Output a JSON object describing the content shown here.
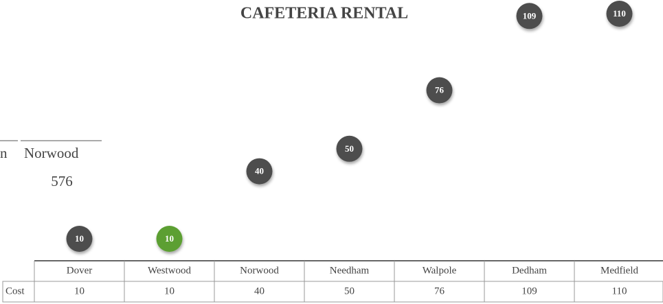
{
  "chart_data": {
    "type": "dot",
    "title": "CAFETERIA RENTAL",
    "categories": [
      "Dover",
      "Westwood",
      "Norwood",
      "Needham",
      "Walpole",
      "Dedham",
      "Medfield"
    ],
    "series": [
      {
        "name": "Cost",
        "color": "#4d4d4d",
        "values": [
          10,
          10,
          40,
          50,
          76,
          109,
          110
        ]
      }
    ],
    "highlight": {
      "index": 1,
      "color": "#5b9f31"
    },
    "ylim": [
      0,
      110
    ],
    "overlay": {
      "labels": [
        "n",
        "Norwood"
      ],
      "value": "576"
    }
  }
}
